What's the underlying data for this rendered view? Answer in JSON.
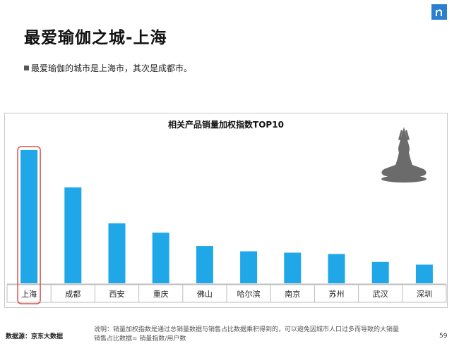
{
  "slide": {
    "title": "最爱瑜伽之城-上海",
    "bullet": "最爱瑜伽的城市是上海市，其次是成都市。",
    "source": "数据源：京东大数据",
    "note_line1": "说明：销量加权指数是通过总销量数据与销售占比数据乘积得到的，可以避免因城市人口过多而导致的大销量",
    "note_line2": "销售占比数据= 销量指数/用户数",
    "page_number": "59",
    "logo_icon": "brand-logo-icon",
    "decoration_icon": "yoga-pose-icon"
  },
  "chart_data": {
    "type": "bar",
    "title": "相关产品销量加权指数TOP10",
    "categories": [
      "上海",
      "成都",
      "西安",
      "重庆",
      "佛山",
      "哈尔滨",
      "南京",
      "苏州",
      "武汉",
      "深圳"
    ],
    "values": [
      100,
      72,
      45,
      38,
      28,
      24,
      23,
      22,
      16,
      14
    ],
    "ylim": [
      0,
      100
    ],
    "xlabel": "",
    "ylabel": "",
    "grid": false,
    "bar_color": "#1fa7e8",
    "highlight_category": "上海",
    "highlight_color": "#d9534f"
  }
}
